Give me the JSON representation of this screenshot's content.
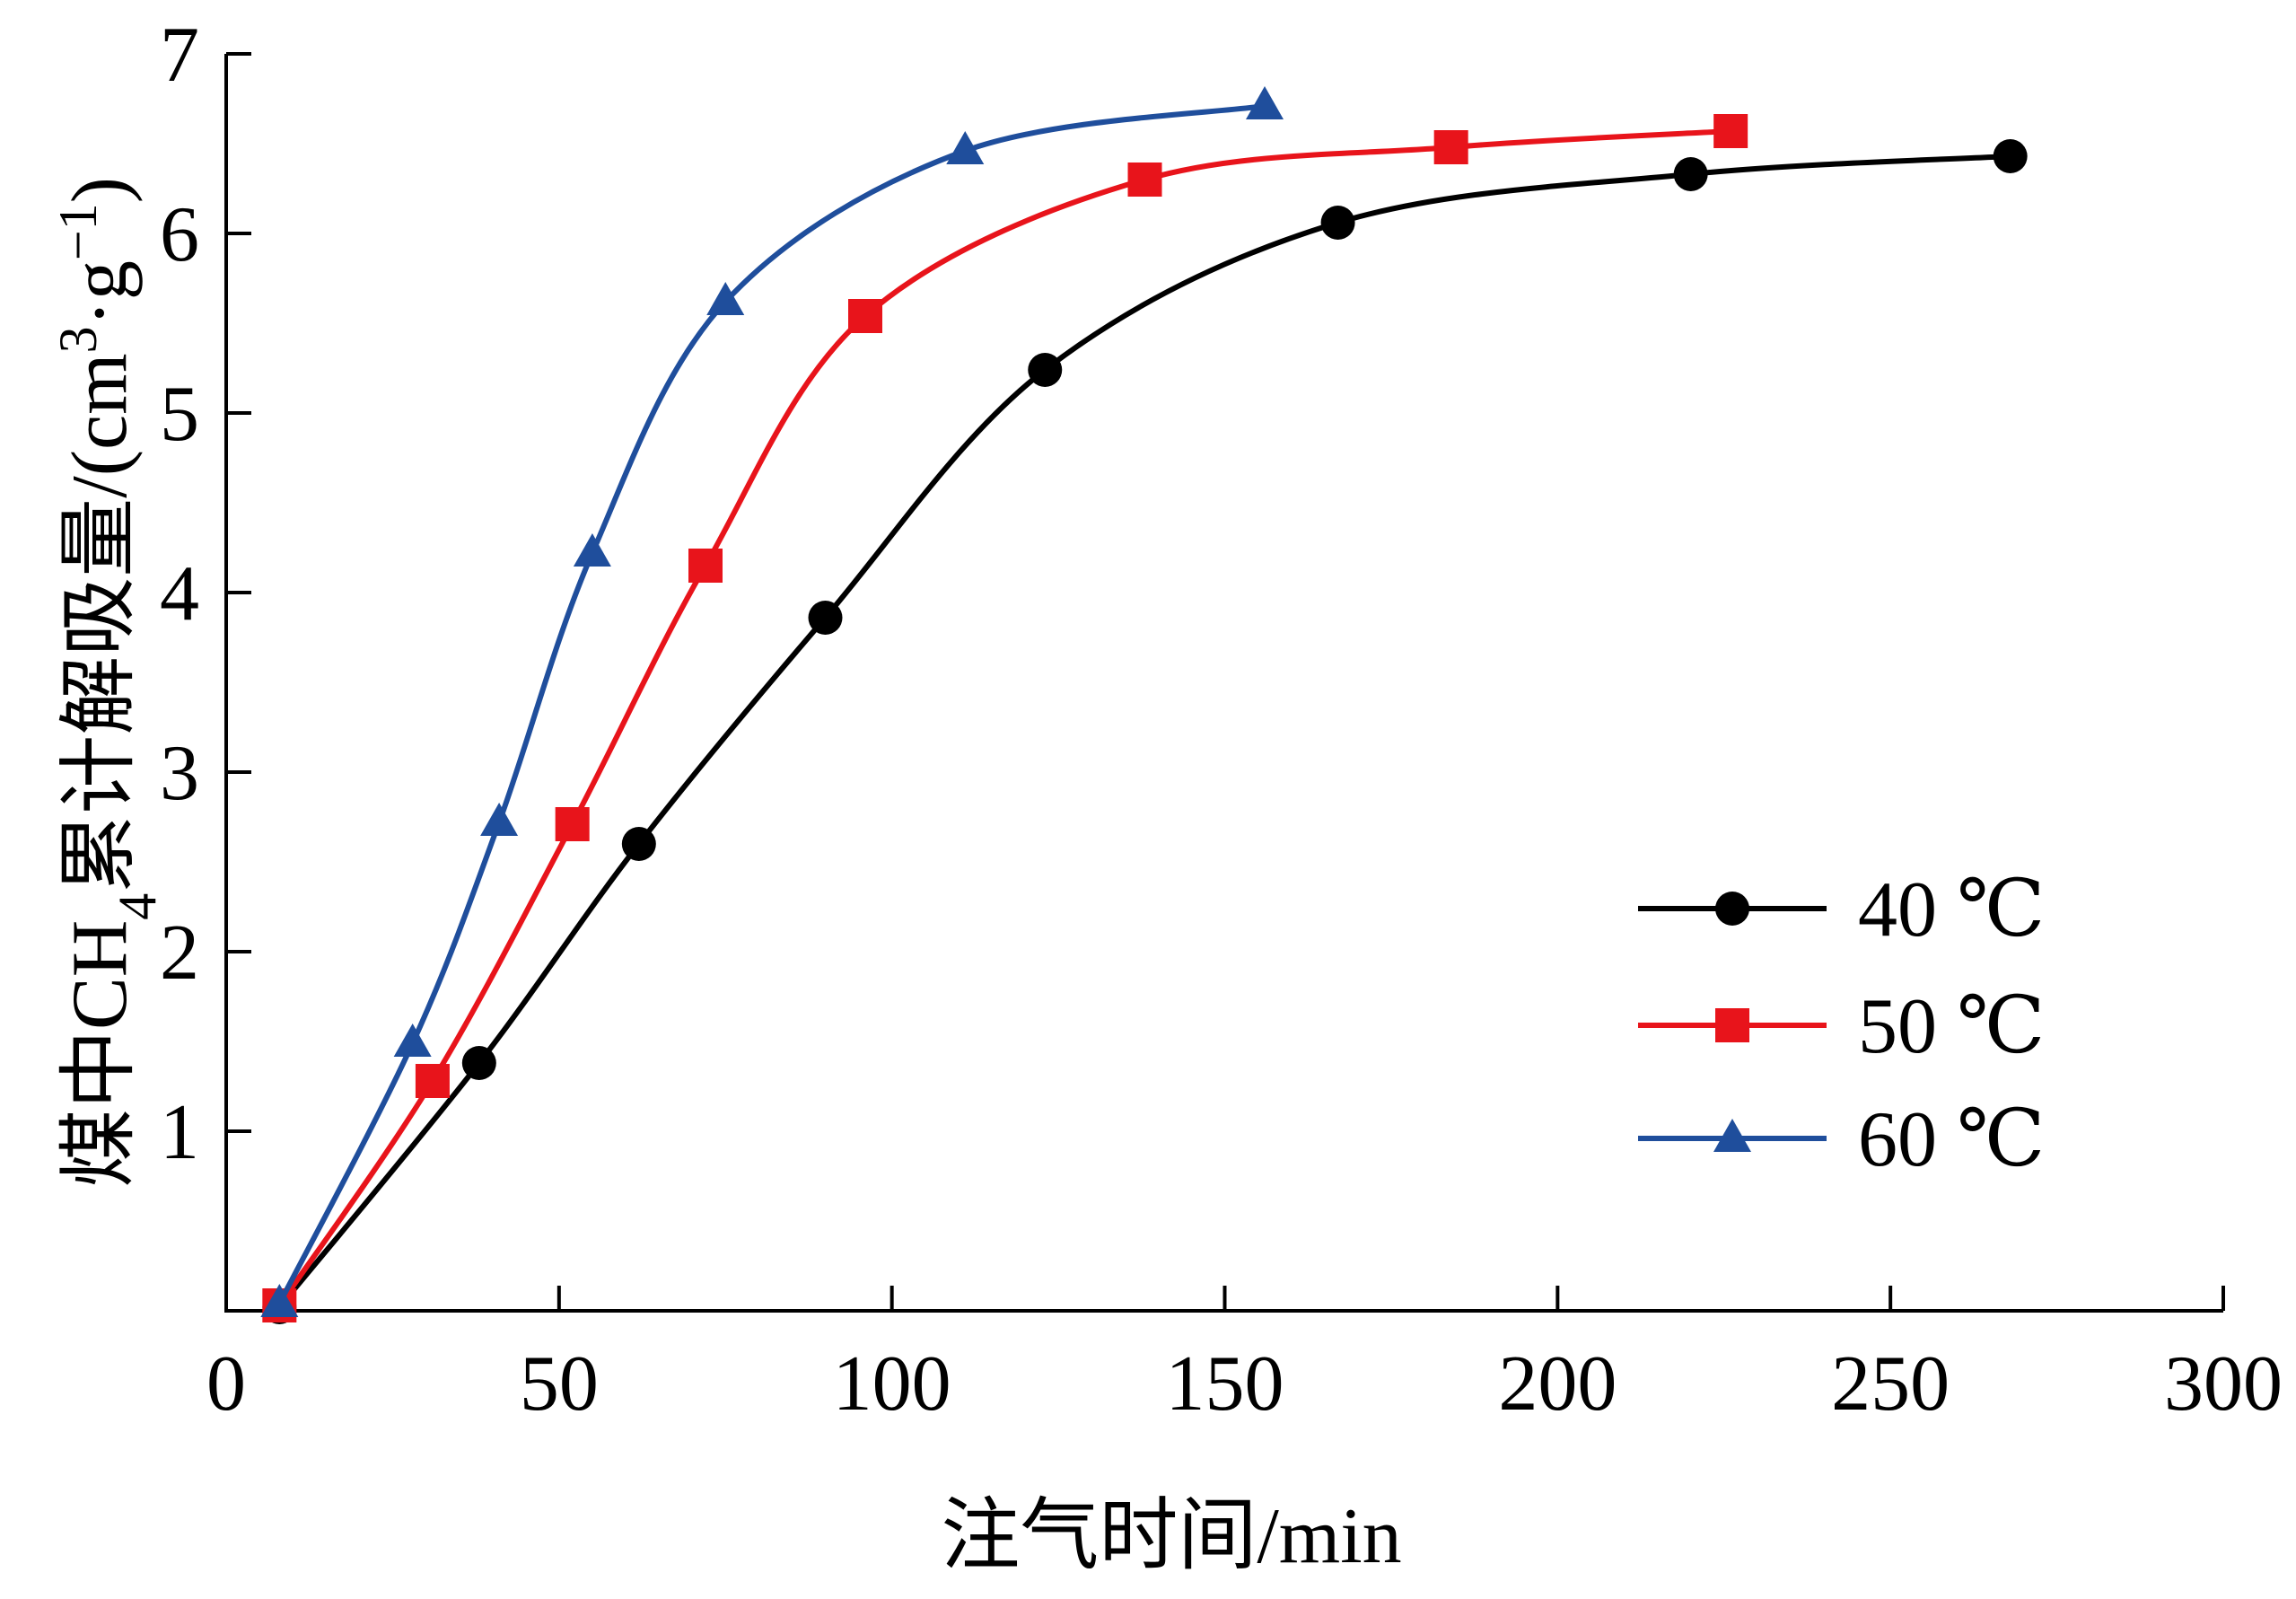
{
  "chart_data": {
    "type": "line",
    "xlabel": "注气时间/min",
    "ylabel": {
      "prefix": "煤中CH",
      "subscript": "4",
      "middle": "累计解吸量/(cm",
      "superscript1": "3",
      "dot": "·g",
      "superscript2": "−1",
      "suffix": ")"
    },
    "xlim": [
      0,
      300
    ],
    "ylim": [
      0,
      7
    ],
    "x_ticks": [
      "0",
      "50",
      "100",
      "150",
      "200",
      "250",
      "300"
    ],
    "y_ticks": [
      "1",
      "2",
      "3",
      "4",
      "5",
      "6",
      "7"
    ],
    "x_tick_values": [
      0,
      50,
      100,
      150,
      200,
      250,
      300
    ],
    "y_tick_values": [
      1,
      2,
      3,
      4,
      5,
      6,
      7
    ],
    "grid": false,
    "legend_position": "bottom-right",
    "series": [
      {
        "name": "40 ℃",
        "color": "#000000",
        "marker": "circle",
        "x": [
          0,
          30,
          54,
          82,
          115,
          159,
          212,
          260
        ],
        "y": [
          0.02,
          1.38,
          2.6,
          3.86,
          5.24,
          6.06,
          6.33,
          6.43
        ]
      },
      {
        "name": "50 ℃",
        "color": "#e8141b",
        "marker": "square",
        "x": [
          0,
          23,
          44,
          64,
          88,
          130,
          176,
          218
        ],
        "y": [
          0.03,
          1.28,
          2.71,
          4.15,
          5.54,
          6.3,
          6.48,
          6.57
        ]
      },
      {
        "name": "60 ℃",
        "color": "#1f4e9c",
        "marker": "triangle",
        "x": [
          0,
          20,
          33,
          47,
          67,
          103,
          148
        ],
        "y": [
          0.04,
          1.49,
          2.72,
          4.22,
          5.62,
          6.46,
          6.71
        ]
      }
    ]
  }
}
